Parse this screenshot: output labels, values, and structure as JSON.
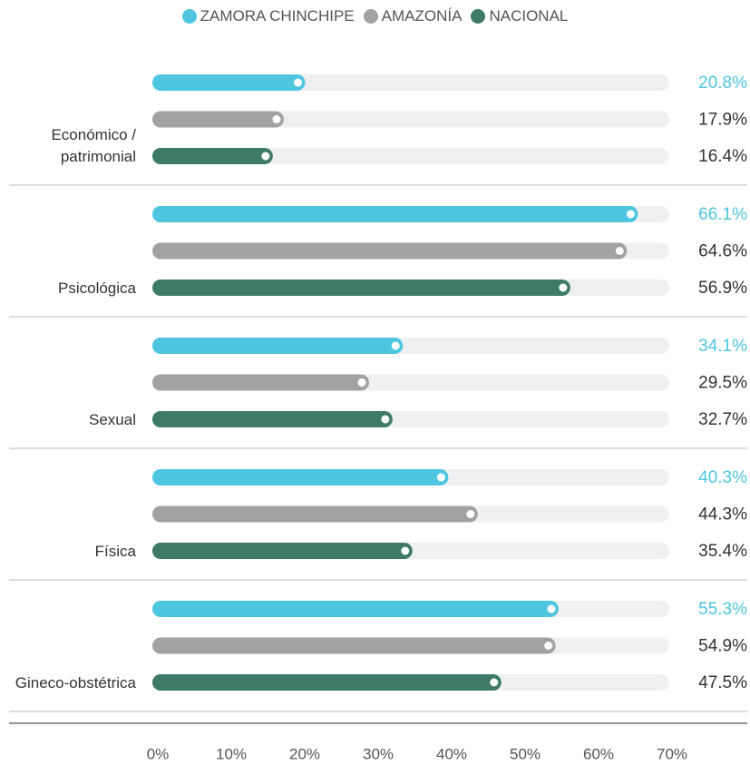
{
  "chart_data": {
    "type": "bar",
    "orientation": "horizontal",
    "categories": [
      "Económico / patrimonial",
      "Psicológica",
      "Sexual",
      "Física",
      "Gineco-obstétrica"
    ],
    "series": [
      {
        "name": "ZAMORA CHINCHIPE",
        "color": "#4ec6e0",
        "label_color": "#4ec6e0",
        "values": [
          20.8,
          66.1,
          34.1,
          40.3,
          55.3
        ],
        "value_labels": [
          "20.8%",
          "66.1%",
          "34.1%",
          "40.3%",
          "55.3%"
        ]
      },
      {
        "name": "AMAZONÍA",
        "color": "#a0a2a4",
        "label_color": "#333333",
        "values": [
          17.9,
          64.6,
          29.5,
          44.3,
          54.9
        ],
        "value_labels": [
          "17.9%",
          "64.6%",
          "29.5%",
          "44.3%",
          "54.9%"
        ]
      },
      {
        "name": "NACIONAL",
        "color": "#3e7a67",
        "label_color": "#333333",
        "values": [
          16.4,
          56.9,
          32.7,
          35.4,
          47.5
        ],
        "value_labels": [
          "16.4%",
          "56.9%",
          "32.7%",
          "35.4%",
          "47.5%"
        ]
      }
    ],
    "xlim": [
      0,
      70
    ],
    "xticks": [
      {
        "value": 0,
        "label": "0%"
      },
      {
        "value": 10,
        "label": "10%"
      },
      {
        "value": 20,
        "label": "20%"
      },
      {
        "value": 30,
        "label": "30%"
      },
      {
        "value": 40,
        "label": "40%"
      },
      {
        "value": 50,
        "label": "50%"
      },
      {
        "value": 60,
        "label": "60%"
      },
      {
        "value": 70,
        "label": "70%"
      }
    ],
    "legend": "top"
  }
}
